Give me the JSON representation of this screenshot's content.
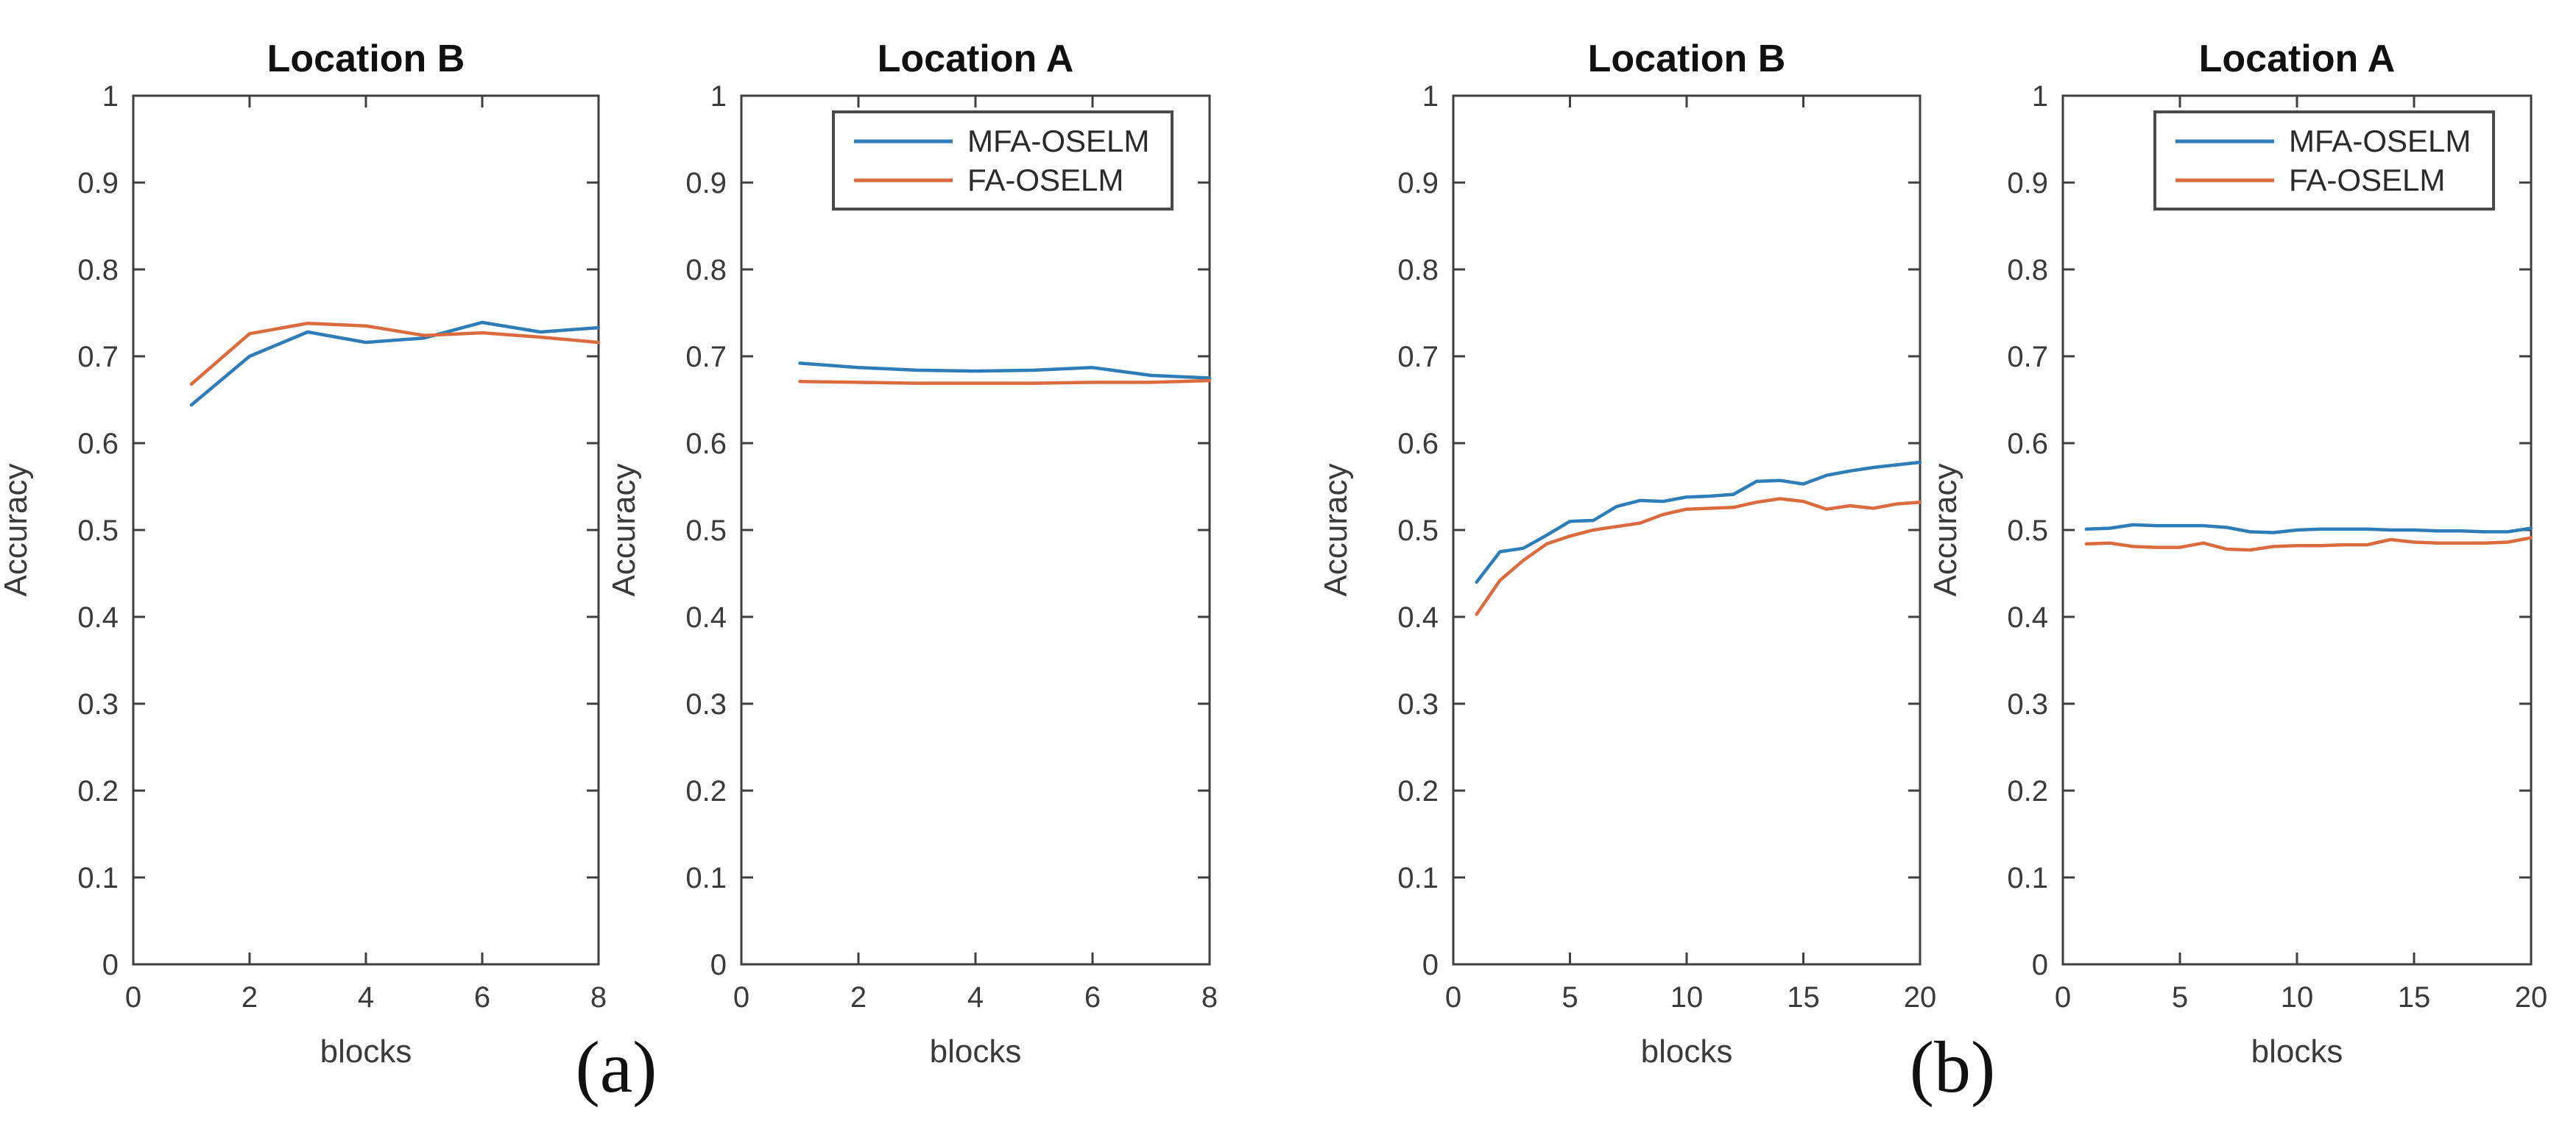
{
  "figure": {
    "background": "#ffffff",
    "panel_labels": {
      "a": "(a)",
      "b": "(b)"
    }
  },
  "colors": {
    "mfa_line": "#2e7cb8",
    "fa_line": "#db6b3f",
    "axis": "#3f3f3f",
    "tick_label": "#3a3a3a",
    "title": "#111111",
    "legend_border": "#4a4a4a",
    "legend_text": "#2a2a2a"
  },
  "chart_data": [
    {
      "type": "line",
      "panel": "a",
      "title": "Location B",
      "xlabel": "blocks",
      "ylabel": "Accuracy",
      "xlim": [
        0,
        8
      ],
      "ylim": [
        0,
        1
      ],
      "xticks": [
        "0",
        "2",
        "4",
        "6",
        "8"
      ],
      "yticks": [
        "0",
        "0.1",
        "0.2",
        "0.3",
        "0.4",
        "0.5",
        "0.6",
        "0.7",
        "0.8",
        "0.9",
        "1"
      ],
      "grid": false,
      "legend_visible": false,
      "series": [
        {
          "name": "MFA-OSELM",
          "color_key": "mfa_line",
          "x": [
            1,
            2,
            3,
            4,
            5,
            6,
            7,
            8
          ],
          "y": [
            0.644,
            0.7,
            0.728,
            0.716,
            0.721,
            0.739,
            0.728,
            0.733
          ]
        },
        {
          "name": "FA-OSELM",
          "color_key": "fa_line",
          "x": [
            1,
            2,
            3,
            4,
            5,
            6,
            7,
            8
          ],
          "y": [
            0.668,
            0.726,
            0.738,
            0.735,
            0.724,
            0.727,
            0.722,
            0.716
          ]
        }
      ]
    },
    {
      "type": "line",
      "panel": "a",
      "title": "Location A",
      "xlabel": "blocks",
      "ylabel": "Accuracy",
      "xlim": [
        0,
        8
      ],
      "ylim": [
        0,
        1
      ],
      "xticks": [
        "0",
        "2",
        "4",
        "6",
        "8"
      ],
      "yticks": [
        "0",
        "0.1",
        "0.2",
        "0.3",
        "0.4",
        "0.5",
        "0.6",
        "0.7",
        "0.8",
        "0.9",
        "1"
      ],
      "grid": false,
      "legend_visible": true,
      "legend_position": "northeast-inside",
      "series": [
        {
          "name": "MFA-OSELM",
          "color_key": "mfa_line",
          "x": [
            1,
            2,
            3,
            4,
            5,
            6,
            7,
            8
          ],
          "y": [
            0.692,
            0.687,
            0.684,
            0.683,
            0.684,
            0.687,
            0.678,
            0.675
          ]
        },
        {
          "name": "FA-OSELM",
          "color_key": "fa_line",
          "x": [
            1,
            2,
            3,
            4,
            5,
            6,
            7,
            8
          ],
          "y": [
            0.671,
            0.67,
            0.669,
            0.669,
            0.669,
            0.67,
            0.67,
            0.672
          ]
        }
      ]
    },
    {
      "type": "line",
      "panel": "b",
      "title": "Location B",
      "xlabel": "blocks",
      "ylabel": "Accuracy",
      "xlim": [
        0,
        20
      ],
      "ylim": [
        0,
        1
      ],
      "xticks": [
        "0",
        "5",
        "10",
        "15",
        "20"
      ],
      "yticks": [
        "0",
        "0.1",
        "0.2",
        "0.3",
        "0.4",
        "0.5",
        "0.6",
        "0.7",
        "0.8",
        "0.9",
        "1"
      ],
      "grid": false,
      "legend_visible": false,
      "series": [
        {
          "name": "MFA-OSELM",
          "color_key": "mfa_line",
          "x": [
            1,
            2,
            3,
            4,
            5,
            6,
            7,
            8,
            9,
            10,
            11,
            12,
            13,
            14,
            15,
            16,
            17,
            18,
            19,
            20
          ],
          "y": [
            0.44,
            0.475,
            0.479,
            0.494,
            0.51,
            0.511,
            0.527,
            0.534,
            0.533,
            0.538,
            0.539,
            0.541,
            0.556,
            0.557,
            0.553,
            0.563,
            0.568,
            0.572,
            0.575,
            0.578
          ]
        },
        {
          "name": "FA-OSELM",
          "color_key": "fa_line",
          "x": [
            1,
            2,
            3,
            4,
            5,
            6,
            7,
            8,
            9,
            10,
            11,
            12,
            13,
            14,
            15,
            16,
            17,
            18,
            19,
            20
          ],
          "y": [
            0.403,
            0.442,
            0.465,
            0.484,
            0.493,
            0.5,
            0.504,
            0.508,
            0.518,
            0.524,
            0.525,
            0.526,
            0.532,
            0.536,
            0.533,
            0.524,
            0.528,
            0.525,
            0.53,
            0.532
          ]
        }
      ]
    },
    {
      "type": "line",
      "panel": "b",
      "title": "Location A",
      "xlabel": "blocks",
      "ylabel": "Accuracy",
      "xlim": [
        0,
        20
      ],
      "ylim": [
        0,
        1
      ],
      "xticks": [
        "0",
        "5",
        "10",
        "15",
        "20"
      ],
      "yticks": [
        "0",
        "0.1",
        "0.2",
        "0.3",
        "0.4",
        "0.5",
        "0.6",
        "0.7",
        "0.8",
        "0.9",
        "1"
      ],
      "grid": false,
      "legend_visible": true,
      "legend_position": "northeast-inside",
      "series": [
        {
          "name": "MFA-OSELM",
          "color_key": "mfa_line",
          "x": [
            1,
            2,
            3,
            4,
            5,
            6,
            7,
            8,
            9,
            10,
            11,
            12,
            13,
            14,
            15,
            16,
            17,
            18,
            19,
            20
          ],
          "y": [
            0.501,
            0.502,
            0.506,
            0.505,
            0.505,
            0.505,
            0.503,
            0.498,
            0.497,
            0.5,
            0.501,
            0.501,
            0.501,
            0.5,
            0.5,
            0.499,
            0.499,
            0.498,
            0.498,
            0.502
          ]
        },
        {
          "name": "FA-OSELM",
          "color_key": "fa_line",
          "x": [
            1,
            2,
            3,
            4,
            5,
            6,
            7,
            8,
            9,
            10,
            11,
            12,
            13,
            14,
            15,
            16,
            17,
            18,
            19,
            20
          ],
          "y": [
            0.484,
            0.485,
            0.481,
            0.48,
            0.48,
            0.485,
            0.478,
            0.477,
            0.481,
            0.482,
            0.482,
            0.483,
            0.483,
            0.489,
            0.486,
            0.485,
            0.485,
            0.485,
            0.486,
            0.491
          ]
        }
      ]
    }
  ],
  "legend": {
    "entries": [
      {
        "label": "MFA-OSELM",
        "color_key": "mfa_line"
      },
      {
        "label": "FA-OSELM",
        "color_key": "fa_line"
      }
    ]
  }
}
